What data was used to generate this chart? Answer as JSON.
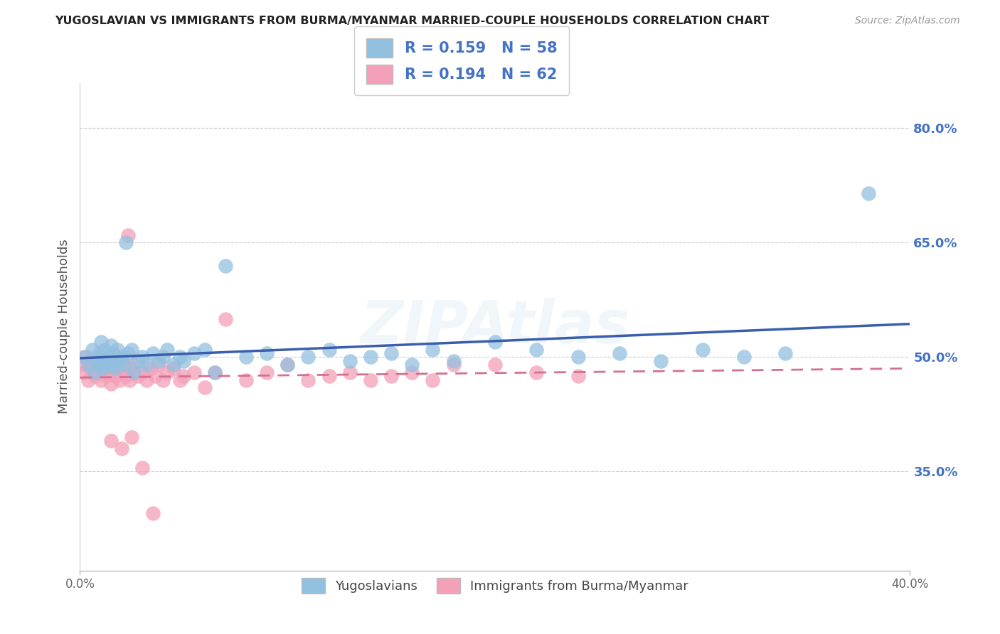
{
  "title": "YUGOSLAVIAN VS IMMIGRANTS FROM BURMA/MYANMAR MARRIED-COUPLE HOUSEHOLDS CORRELATION CHART",
  "source": "Source: ZipAtlas.com",
  "ylabel": "Married-couple Households",
  "y_ticks_labels": [
    "35.0%",
    "50.0%",
    "65.0%",
    "80.0%"
  ],
  "y_tick_vals": [
    0.35,
    0.5,
    0.65,
    0.8
  ],
  "x_min": 0.0,
  "x_max": 0.4,
  "y_min": 0.22,
  "y_max": 0.86,
  "legend_label1": "Yugoslavians",
  "legend_label2": "Immigrants from Burma/Myanmar",
  "blue_color": "#92C0E0",
  "pink_color": "#F4A0B8",
  "blue_line_color": "#3A5EAD",
  "pink_line_color": "#D47090",
  "blue_R": 0.159,
  "blue_N": 58,
  "pink_R": 0.194,
  "pink_N": 62,
  "blue_x": [
    0.002,
    0.004,
    0.006,
    0.007,
    0.008,
    0.009,
    0.01,
    0.01,
    0.011,
    0.012,
    0.013,
    0.014,
    0.015,
    0.015,
    0.016,
    0.017,
    0.018,
    0.019,
    0.02,
    0.021,
    0.022,
    0.023,
    0.025,
    0.026,
    0.028,
    0.03,
    0.032,
    0.035,
    0.038,
    0.04,
    0.042,
    0.045,
    0.048,
    0.05,
    0.055,
    0.06,
    0.065,
    0.07,
    0.08,
    0.09,
    0.1,
    0.11,
    0.12,
    0.13,
    0.14,
    0.15,
    0.16,
    0.17,
    0.18,
    0.2,
    0.22,
    0.24,
    0.26,
    0.28,
    0.3,
    0.32,
    0.34,
    0.38
  ],
  "blue_y": [
    0.5,
    0.49,
    0.51,
    0.48,
    0.495,
    0.505,
    0.49,
    0.52,
    0.485,
    0.51,
    0.495,
    0.5,
    0.49,
    0.515,
    0.505,
    0.485,
    0.51,
    0.495,
    0.5,
    0.49,
    0.65,
    0.505,
    0.51,
    0.48,
    0.495,
    0.5,
    0.49,
    0.505,
    0.495,
    0.5,
    0.51,
    0.49,
    0.5,
    0.495,
    0.505,
    0.51,
    0.48,
    0.62,
    0.5,
    0.505,
    0.49,
    0.5,
    0.51,
    0.495,
    0.5,
    0.505,
    0.49,
    0.51,
    0.495,
    0.52,
    0.51,
    0.5,
    0.505,
    0.495,
    0.51,
    0.5,
    0.505,
    0.715
  ],
  "pink_x": [
    0.001,
    0.002,
    0.003,
    0.004,
    0.005,
    0.006,
    0.007,
    0.008,
    0.009,
    0.01,
    0.01,
    0.011,
    0.012,
    0.013,
    0.014,
    0.015,
    0.015,
    0.016,
    0.017,
    0.018,
    0.019,
    0.02,
    0.021,
    0.022,
    0.023,
    0.024,
    0.025,
    0.026,
    0.028,
    0.03,
    0.032,
    0.034,
    0.036,
    0.038,
    0.04,
    0.042,
    0.045,
    0.048,
    0.05,
    0.055,
    0.06,
    0.065,
    0.07,
    0.08,
    0.09,
    0.1,
    0.11,
    0.12,
    0.13,
    0.14,
    0.15,
    0.16,
    0.17,
    0.18,
    0.2,
    0.22,
    0.24,
    0.015,
    0.02,
    0.025,
    0.03,
    0.035
  ],
  "pink_y": [
    0.49,
    0.48,
    0.5,
    0.47,
    0.485,
    0.495,
    0.475,
    0.49,
    0.485,
    0.47,
    0.5,
    0.48,
    0.49,
    0.475,
    0.495,
    0.48,
    0.465,
    0.49,
    0.475,
    0.485,
    0.47,
    0.48,
    0.49,
    0.475,
    0.66,
    0.47,
    0.485,
    0.49,
    0.475,
    0.48,
    0.47,
    0.485,
    0.475,
    0.49,
    0.47,
    0.48,
    0.485,
    0.47,
    0.475,
    0.48,
    0.46,
    0.48,
    0.55,
    0.47,
    0.48,
    0.49,
    0.47,
    0.475,
    0.48,
    0.47,
    0.475,
    0.48,
    0.47,
    0.49,
    0.49,
    0.48,
    0.475,
    0.39,
    0.38,
    0.395,
    0.355,
    0.295
  ]
}
